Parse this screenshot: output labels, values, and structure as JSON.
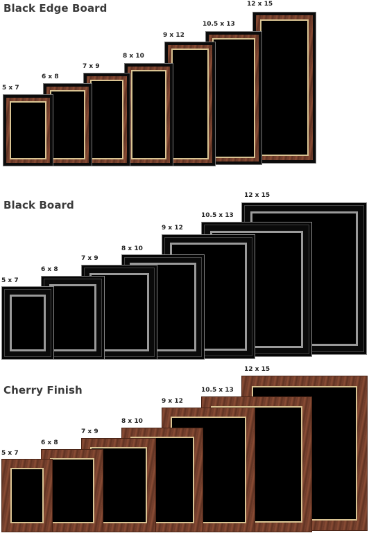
{
  "sections": [
    {
      "title": "Black Edge Board",
      "style": "edge"
    },
    {
      "title": "Black Board",
      "style": "black"
    },
    {
      "title": "Cherry Finish",
      "style": "cherry"
    }
  ],
  "sizes": [
    "5 x 7",
    "6 x 8",
    "7 x 9",
    "8 x 10",
    "9 x 12",
    "10.5 x 13",
    "12 x 15"
  ],
  "colors": {
    "wood": "#7a4330",
    "gold_trim": "#d9c493",
    "silver_trim": "#9a9a9a",
    "face": "#000000"
  }
}
